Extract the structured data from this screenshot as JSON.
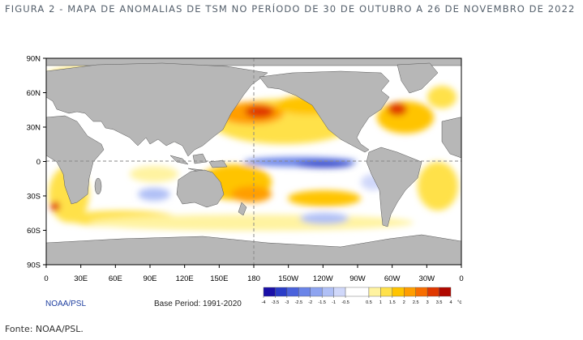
{
  "figure": {
    "title": "FIGURA 2 - MAPA DE ANOMALIAS DE TSM NO PERÍODO DE 30 DE OUTUBRO A 26 DE NOVEMBRO DE 2022",
    "source": "Fonte: NOAA/PSL."
  },
  "map": {
    "lat_ticks": [
      "90N",
      "60N",
      "30N",
      "0",
      "30S",
      "60S",
      "90S"
    ],
    "lon_ticks": [
      "0",
      "30E",
      "60E",
      "90E",
      "120E",
      "150E",
      "180",
      "150W",
      "120W",
      "90W",
      "60W",
      "30W",
      "0"
    ],
    "credit": "NOAA/PSL",
    "base_period": "Base Period: 1991-2020",
    "colorbar": {
      "ticks": [
        -4,
        -3.5,
        -3,
        -2.5,
        -2,
        -1.5,
        -1,
        -0.5,
        0.5,
        1,
        1.5,
        2,
        2.5,
        3,
        3.5,
        4
      ],
      "colors": [
        "#1a10a8",
        "#2a3cc8",
        "#4a62dc",
        "#6a84e8",
        "#8ea4f0",
        "#b0c0f6",
        "#d0d8fa",
        "#ffffff",
        "#fff3a0",
        "#ffe14a",
        "#ffc400",
        "#ff9e00",
        "#f86e00",
        "#e03800",
        "#b00800"
      ],
      "unit": "°c"
    }
  }
}
